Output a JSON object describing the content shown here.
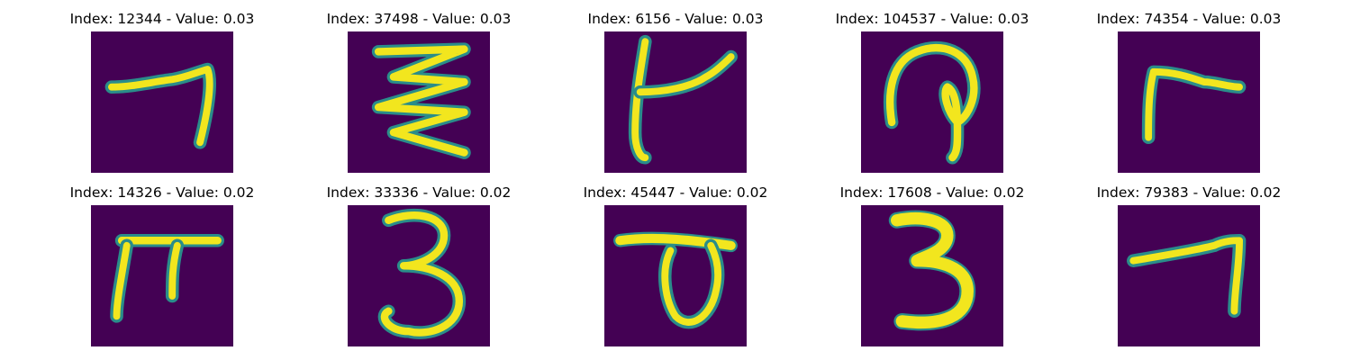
{
  "images": [
    {
      "title": "Index: 12344 - Value: 0.03",
      "glyph": "seven-like-stroke",
      "colormap": "viridis"
    },
    {
      "title": "Index: 37498 - Value: 0.03",
      "glyph": "zigzag-stroke",
      "colormap": "viridis"
    },
    {
      "title": "Index: 6156 - Value: 0.03",
      "glyph": "k-like-stroke",
      "colormap": "viridis"
    },
    {
      "title": "Index: 104537 - Value: 0.03",
      "glyph": "loop-stroke",
      "colormap": "viridis"
    },
    {
      "title": "Index: 74354 - Value: 0.03",
      "glyph": "gamma-stroke",
      "colormap": "viridis"
    },
    {
      "title": "Index: 14326 - Value: 0.02",
      "glyph": "pi-stroke",
      "colormap": "viridis"
    },
    {
      "title": "Index: 33336 - Value: 0.02",
      "glyph": "three-stroke",
      "colormap": "viridis"
    },
    {
      "title": "Index: 45447 - Value: 0.02",
      "glyph": "bowl-stroke",
      "colormap": "viridis"
    },
    {
      "title": "Index: 17608 - Value: 0.02",
      "glyph": "bold-three-stroke",
      "colormap": "viridis"
    },
    {
      "title": "Index: 79383 - Value: 0.02",
      "glyph": "seven-like-stroke",
      "colormap": "viridis"
    }
  ]
}
